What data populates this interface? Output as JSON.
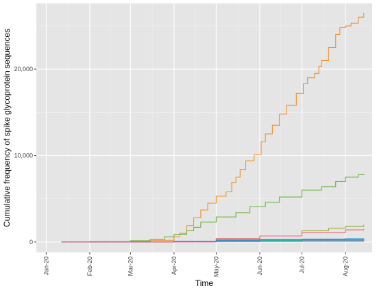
{
  "chart_data": {
    "type": "line",
    "xlabel": "Time",
    "ylabel": "Cumulative frequency of spike glycoprotein sequences",
    "x_ticks": [
      "Jan-20",
      "Feb-20",
      "Mar-20",
      "Apr-20",
      "May-20",
      "Jun-20",
      "Jul-20",
      "Aug-20"
    ],
    "y_ticks": [
      "0",
      "10,000",
      "20,000"
    ],
    "xlim": [
      "2019-12-25",
      "2020-08-20"
    ],
    "ylim": [
      -1200,
      27600
    ],
    "grid": true,
    "background": "#e5e5e5",
    "series": [
      {
        "color": "#f0922e",
        "points": [
          [
            "2020-01-12",
            0
          ],
          [
            "2020-02-01",
            50
          ],
          [
            "2020-03-01",
            100
          ],
          [
            "2020-03-15",
            200
          ],
          [
            "2020-04-01",
            600
          ],
          [
            "2020-04-05",
            1000
          ],
          [
            "2020-04-10",
            1900
          ],
          [
            "2020-04-15",
            2800
          ],
          [
            "2020-04-20",
            3700
          ],
          [
            "2020-04-25",
            4500
          ],
          [
            "2020-05-01",
            5300
          ],
          [
            "2020-05-08",
            5800
          ],
          [
            "2020-05-12",
            6900
          ],
          [
            "2020-05-15",
            7500
          ],
          [
            "2020-05-18",
            8400
          ],
          [
            "2020-05-22",
            9400
          ],
          [
            "2020-05-28",
            10100
          ],
          [
            "2020-06-02",
            11600
          ],
          [
            "2020-06-05",
            12500
          ],
          [
            "2020-06-10",
            13500
          ],
          [
            "2020-06-15",
            14800
          ],
          [
            "2020-06-20",
            15800
          ],
          [
            "2020-06-27",
            17200
          ],
          [
            "2020-07-02",
            18300
          ],
          [
            "2020-07-05",
            19000
          ],
          [
            "2020-07-10",
            19500
          ],
          [
            "2020-07-13",
            20300
          ],
          [
            "2020-07-15",
            21000
          ],
          [
            "2020-07-20",
            22500
          ],
          [
            "2020-07-25",
            24000
          ],
          [
            "2020-07-28",
            24800
          ],
          [
            "2020-08-01",
            25000
          ],
          [
            "2020-08-05",
            25300
          ],
          [
            "2020-08-10",
            26000
          ],
          [
            "2020-08-14",
            26500
          ]
        ]
      },
      {
        "color": "#6db33f",
        "points": [
          [
            "2020-01-12",
            0
          ],
          [
            "2020-02-01",
            50
          ],
          [
            "2020-03-01",
            150
          ],
          [
            "2020-03-15",
            300
          ],
          [
            "2020-03-25",
            600
          ],
          [
            "2020-04-01",
            900
          ],
          [
            "2020-04-10",
            1300
          ],
          [
            "2020-04-15",
            1700
          ],
          [
            "2020-04-20",
            2300
          ],
          [
            "2020-05-01",
            2900
          ],
          [
            "2020-05-15",
            3400
          ],
          [
            "2020-05-25",
            4100
          ],
          [
            "2020-06-05",
            4600
          ],
          [
            "2020-06-15",
            5200
          ],
          [
            "2020-07-01",
            6000
          ],
          [
            "2020-07-15",
            6400
          ],
          [
            "2020-07-25",
            7000
          ],
          [
            "2020-08-01",
            7500
          ],
          [
            "2020-08-10",
            7800
          ],
          [
            "2020-08-14",
            7900
          ]
        ]
      },
      {
        "color": "#8fae2e",
        "points": [
          [
            "2020-01-12",
            0
          ],
          [
            "2020-03-01",
            20
          ],
          [
            "2020-04-01",
            100
          ],
          [
            "2020-05-01",
            300
          ],
          [
            "2020-06-01",
            700
          ],
          [
            "2020-07-01",
            1300
          ],
          [
            "2020-07-20",
            1600
          ],
          [
            "2020-08-01",
            1800
          ],
          [
            "2020-08-14",
            2000
          ]
        ]
      },
      {
        "color": "#f06578",
        "points": [
          [
            "2020-01-12",
            0
          ],
          [
            "2020-03-01",
            20
          ],
          [
            "2020-04-01",
            100
          ],
          [
            "2020-05-01",
            400
          ],
          [
            "2020-06-01",
            700
          ],
          [
            "2020-07-01",
            1100
          ],
          [
            "2020-08-01",
            1400
          ],
          [
            "2020-08-14",
            1500
          ]
        ]
      },
      {
        "color": "#4aa9d6",
        "points": [
          [
            "2020-01-12",
            0
          ],
          [
            "2020-04-01",
            50
          ],
          [
            "2020-05-01",
            200
          ],
          [
            "2020-06-01",
            300
          ],
          [
            "2020-07-01",
            350
          ],
          [
            "2020-08-01",
            400
          ],
          [
            "2020-08-14",
            450
          ]
        ]
      },
      {
        "color": "#3f7fd0",
        "points": [
          [
            "2020-01-12",
            0
          ],
          [
            "2020-04-01",
            80
          ],
          [
            "2020-05-01",
            200
          ],
          [
            "2020-06-01",
            250
          ],
          [
            "2020-07-01",
            280
          ],
          [
            "2020-08-14",
            300
          ]
        ]
      },
      {
        "color": "#a45ee0",
        "points": [
          [
            "2020-01-12",
            0
          ],
          [
            "2020-04-01",
            30
          ],
          [
            "2020-05-01",
            100
          ],
          [
            "2020-06-01",
            150
          ],
          [
            "2020-07-01",
            200
          ],
          [
            "2020-08-14",
            250
          ]
        ]
      },
      {
        "color": "#e05ac7",
        "points": [
          [
            "2020-01-12",
            0
          ],
          [
            "2020-04-01",
            20
          ],
          [
            "2020-05-01",
            60
          ],
          [
            "2020-06-01",
            100
          ],
          [
            "2020-07-01",
            120
          ],
          [
            "2020-08-14",
            150
          ]
        ]
      },
      {
        "color": "#19b8a2",
        "points": [
          [
            "2020-01-12",
            0
          ],
          [
            "2020-04-01",
            40
          ],
          [
            "2020-05-01",
            120
          ],
          [
            "2020-06-01",
            180
          ],
          [
            "2020-07-01",
            220
          ],
          [
            "2020-08-14",
            250
          ]
        ]
      },
      {
        "color": "#ec5a8f",
        "points": [
          [
            "2020-01-12",
            0
          ],
          [
            "2020-04-01",
            10
          ],
          [
            "2020-05-01",
            40
          ],
          [
            "2020-06-01",
            60
          ],
          [
            "2020-07-01",
            80
          ],
          [
            "2020-08-14",
            100
          ]
        ]
      }
    ]
  }
}
